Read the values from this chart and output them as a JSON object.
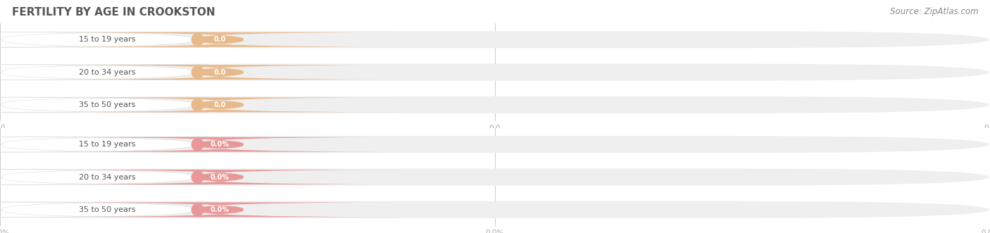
{
  "title": "FERTILITY BY AGE IN CROOKSTON",
  "source": "Source: ZipAtlas.com",
  "top_group": {
    "labels": [
      "15 to 19 years",
      "20 to 34 years",
      "35 to 50 years"
    ],
    "values": [
      0.0,
      0.0,
      0.0
    ],
    "bar_bg_color": "#efefef",
    "pill_color": "#e8b98a",
    "value_bg_color": "#e8b98a",
    "value_text_color": "#ffffff",
    "tick_fmt": "0.0"
  },
  "bottom_group": {
    "labels": [
      "15 to 19 years",
      "20 to 34 years",
      "35 to 50 years"
    ],
    "values": [
      0.0,
      0.0,
      0.0
    ],
    "bar_bg_color": "#efefef",
    "pill_color": "#e89898",
    "value_bg_color": "#e89898",
    "value_text_color": "#ffffff",
    "tick_fmt": "0.0%"
  },
  "fig_width": 14.06,
  "fig_height": 3.31,
  "dpi": 100,
  "bg_color": "#ffffff",
  "title_fontsize": 11,
  "title_color": "#555555",
  "source_fontsize": 8.5,
  "source_color": "#888888",
  "label_fontsize": 8,
  "value_fontsize": 7,
  "tick_fontsize": 7.5,
  "tick_color": "#aaaaaa",
  "bar_height": 0.52,
  "bar_bg_rounding": 0.25
}
